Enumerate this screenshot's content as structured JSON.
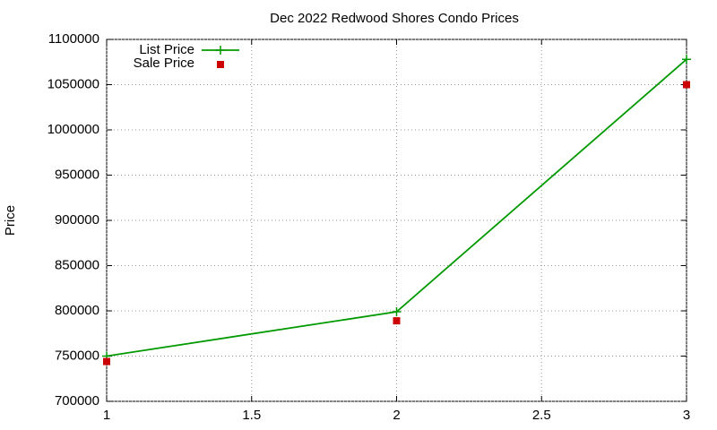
{
  "chart_data": {
    "type": "line",
    "title": "Dec 2022 Redwood Shores Condo Prices",
    "y_label": "Price",
    "series": [
      {
        "name": "List Price",
        "color": "#009900",
        "style": "linespoints",
        "x": [
          1,
          2,
          3
        ],
        "values": [
          750000,
          799000,
          1078000
        ]
      },
      {
        "name": "Sale Price",
        "color": "#cc0000",
        "style": "points",
        "x": [
          1,
          2,
          3
        ],
        "values": [
          744000,
          789000,
          1050000
        ]
      }
    ],
    "xlim": [
      1,
      3
    ],
    "xticks": [
      1,
      1.5,
      2,
      2.5,
      3
    ],
    "ylim": [
      700000,
      1100000
    ],
    "yticks": [
      700000,
      750000,
      800000,
      850000,
      900000,
      950000,
      1000000,
      1050000,
      1100000
    ],
    "grid": true,
    "legend": "top-left"
  }
}
